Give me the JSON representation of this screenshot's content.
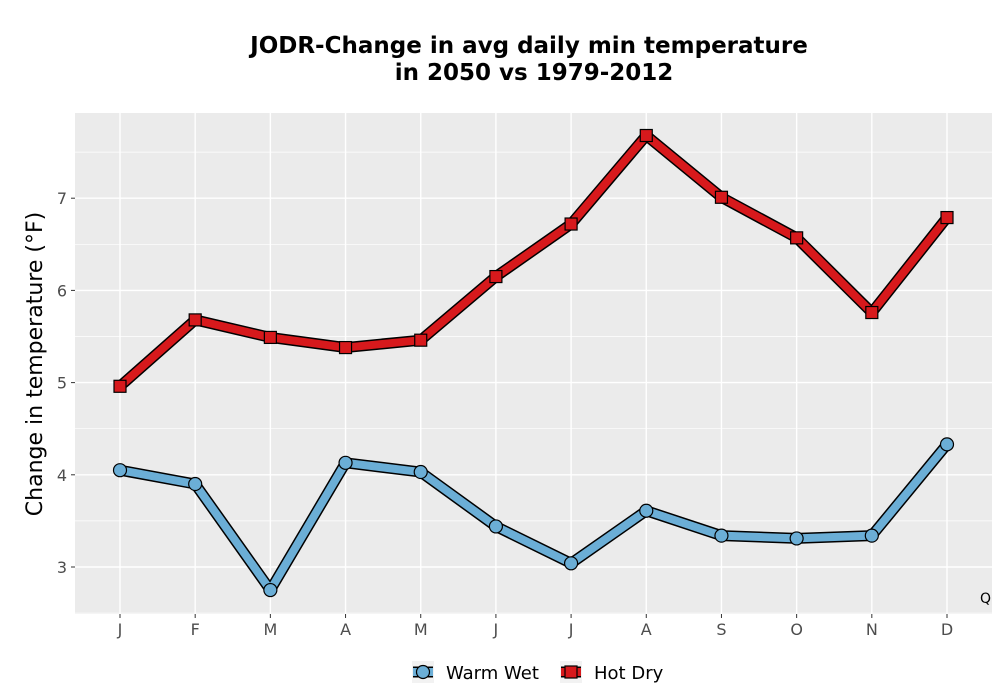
{
  "chart_data": {
    "type": "line",
    "title_lines": [
      "JODR-Change in avg daily min temperature",
      "in 2050 vs 1979-2012"
    ],
    "ylabel": "Change in temperature (°F)",
    "xlabel": "",
    "categories": [
      "J",
      "F",
      "M",
      "A",
      "M",
      "J",
      "J",
      "A",
      "S",
      "O",
      "N",
      "D"
    ],
    "yticks": [
      3,
      4,
      5,
      6,
      7
    ],
    "ylim": [
      2.5,
      7.9
    ],
    "grid": true,
    "legend_position": "bottom",
    "corner_label": "Q",
    "series": [
      {
        "name": "Warm Wet",
        "color": "#6baed6",
        "marker": "circle",
        "values": [
          4.05,
          3.9,
          2.75,
          4.13,
          4.03,
          3.44,
          3.04,
          3.61,
          3.34,
          3.31,
          3.34,
          4.33
        ]
      },
      {
        "name": "Hot Dry",
        "color": "#d7191c",
        "marker": "square",
        "values": [
          4.96,
          5.68,
          5.49,
          5.38,
          5.46,
          6.15,
          6.72,
          7.68,
          7.01,
          6.57,
          5.76,
          6.79
        ]
      }
    ]
  }
}
